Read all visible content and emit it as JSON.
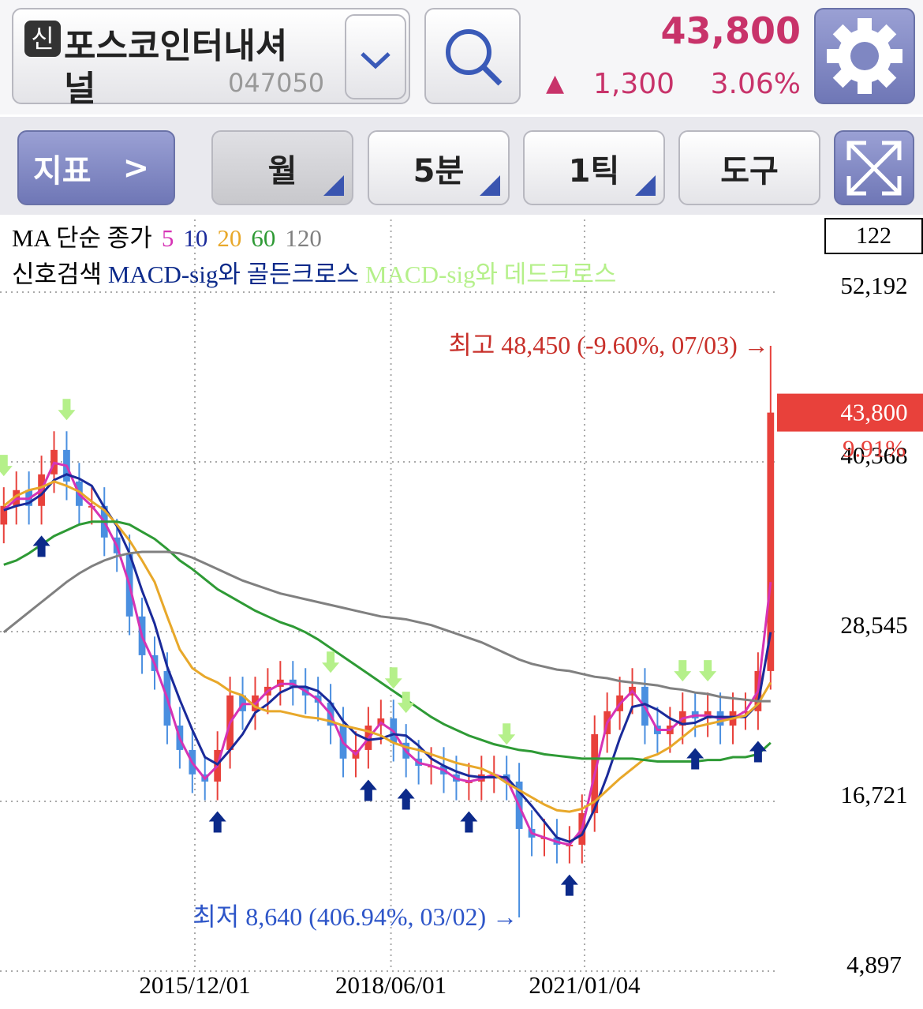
{
  "header": {
    "badge": "신",
    "stock_name_lines": [
      "포스코인터내셔",
      "널"
    ],
    "code": "047050",
    "price": "43,800",
    "change_arrow": "▲",
    "change": "1,300",
    "change_pct": "3.06%"
  },
  "toolbar": {
    "indicator": "지표",
    "period": "월",
    "minute": "5분",
    "tick": "1틱",
    "tools": "도구"
  },
  "chart_data": {
    "type": "candlestick",
    "ma_label": "MA 단순 종가",
    "signal_label": "신호검색",
    "golden_label": "MACD-sig와 골든크로스",
    "dead_label": "MACD-sig와 데드크로스",
    "visible_count": "122",
    "up_color": "#e8413b",
    "down_color": "#4a8fe0",
    "golden_color": "#0c2a8a",
    "dead_color": "#b5f08a",
    "xlim": [
      -0.3,
      61.2
    ],
    "xticks": [
      {
        "value": 15.2,
        "label": "2015/12/01"
      },
      {
        "value": 30.8,
        "label": "2018/06/01"
      },
      {
        "value": 46.2,
        "label": "2021/01/04"
      }
    ],
    "ylim": [
      4897,
      52192
    ],
    "yticks": [
      {
        "value": 4897,
        "label": "4,897"
      },
      {
        "value": 16721,
        "label": "16,721"
      },
      {
        "value": 28545,
        "label": "28,545"
      },
      {
        "value": 40368,
        "label": "40,368"
      },
      {
        "value": 52192,
        "label": "52,192"
      }
    ],
    "grid": true,
    "open": [
      36000,
      37300,
      38400,
      37300,
      39500,
      41200,
      39000,
      37300,
      37300,
      35100,
      34000,
      29600,
      26900,
      25800,
      22000,
      20300,
      18600,
      18100,
      20300,
      24100,
      23000,
      24100,
      24700,
      25200,
      24700,
      24100,
      23600,
      22000,
      19700,
      20300,
      22000,
      22500,
      20800,
      19700,
      19200,
      19200,
      18600,
      18100,
      18100,
      18600,
      18600,
      18100,
      14800,
      14200,
      14200,
      13700,
      13700,
      15900,
      21400,
      23000,
      24100,
      24700,
      22000,
      21400,
      22000,
      23000,
      22500,
      23000,
      22000,
      23000,
      23000,
      25800
    ],
    "high": [
      38600,
      39700,
      39700,
      40800,
      42500,
      42500,
      40300,
      38600,
      38600,
      36400,
      35300,
      30900,
      28200,
      27100,
      23300,
      21600,
      19900,
      21600,
      25400,
      25400,
      25400,
      26000,
      26500,
      26500,
      26000,
      25400,
      24900,
      23300,
      21600,
      23300,
      23800,
      23800,
      22100,
      21000,
      20500,
      20500,
      19900,
      19400,
      19900,
      19900,
      19900,
      19400,
      16100,
      15500,
      15500,
      15000,
      17200,
      22700,
      24300,
      25400,
      26000,
      26000,
      23300,
      23300,
      24300,
      24300,
      24300,
      24300,
      24300,
      24300,
      27100,
      48450
    ],
    "low": [
      34700,
      36000,
      36000,
      36000,
      38200,
      37700,
      36000,
      36000,
      33800,
      32700,
      28300,
      25600,
      24500,
      20700,
      19000,
      17300,
      16800,
      16800,
      19000,
      21700,
      21700,
      22800,
      23400,
      23400,
      22800,
      22300,
      20700,
      18400,
      18400,
      19000,
      20700,
      19500,
      18400,
      17900,
      17900,
      17300,
      16800,
      16800,
      16800,
      17300,
      16800,
      8640,
      12900,
      12900,
      12400,
      12400,
      12400,
      14600,
      20100,
      21700,
      22800,
      20700,
      20100,
      20100,
      20700,
      21200,
      21200,
      20700,
      20700,
      21700,
      21700,
      24500
    ],
    "close": [
      37300,
      38400,
      37300,
      39500,
      41200,
      39000,
      37300,
      37300,
      35100,
      34000,
      29600,
      26900,
      25800,
      22000,
      20300,
      18600,
      18100,
      20300,
      24100,
      23000,
      24100,
      24700,
      25200,
      24700,
      24100,
      23600,
      22000,
      19700,
      20300,
      22000,
      22500,
      20800,
      19700,
      19200,
      19200,
      18600,
      18100,
      18100,
      18600,
      18600,
      18100,
      14800,
      14200,
      14200,
      13700,
      13700,
      15900,
      21400,
      23000,
      24100,
      24700,
      22000,
      21400,
      22000,
      23000,
      22500,
      23000,
      22000,
      23000,
      23000,
      25800,
      43800
    ],
    "series": [
      {
        "name": "5",
        "color": "#d633b5",
        "values": [
          37000,
          37800,
          37800,
          38400,
          40300,
          40100,
          38100,
          37300,
          36200,
          34500,
          31800,
          28200,
          26300,
          23900,
          21100,
          19400,
          18300,
          19200,
          22200,
          23500,
          23500,
          24400,
          24900,
          24900,
          24400,
          23800,
          22800,
          20800,
          20000,
          21100,
          22200,
          21600,
          20200,
          19400,
          19200,
          18900,
          18300,
          18100,
          18300,
          18600,
          18300,
          16400,
          14500,
          14200,
          13900,
          13700,
          14800,
          18600,
          22200,
          23500,
          24400,
          23300,
          21700,
          21700,
          22500,
          22700,
          22700,
          22500,
          22500,
          23000,
          24400,
          32000
        ]
      },
      {
        "name": "10",
        "color": "#1a2a9a",
        "values": [
          37000,
          37300,
          37500,
          38100,
          39100,
          39500,
          39200,
          38700,
          37200,
          35900,
          34000,
          31400,
          29100,
          26100,
          23800,
          21700,
          19800,
          19300,
          20300,
          21400,
          22900,
          23500,
          24300,
          24700,
          24700,
          24400,
          23600,
          22300,
          21400,
          21000,
          21100,
          21400,
          21300,
          20600,
          19700,
          19200,
          18800,
          18500,
          18400,
          18400,
          18400,
          17400,
          16400,
          15300,
          14200,
          13900,
          14400,
          16200,
          18500,
          21100,
          23300,
          23500,
          23100,
          22500,
          22100,
          22200,
          22600,
          22600,
          22600,
          22600,
          23500,
          28500
        ]
      },
      {
        "name": "20",
        "color": "#e8a82a",
        "values": [
          37300,
          38000,
          38400,
          38600,
          39000,
          38700,
          38300,
          37600,
          37000,
          36000,
          34900,
          33500,
          32000,
          29600,
          27300,
          26000,
          25400,
          25000,
          24400,
          24100,
          23300,
          23000,
          23000,
          22800,
          22600,
          22500,
          22300,
          22000,
          21800,
          21600,
          21300,
          20800,
          20500,
          20300,
          20000,
          19700,
          19400,
          19200,
          19000,
          18600,
          18000,
          17500,
          17000,
          16500,
          16100,
          16000,
          16200,
          16700,
          17500,
          18300,
          19000,
          19700,
          20000,
          20500,
          21200,
          21900,
          22100,
          22300,
          22500,
          22700,
          23500,
          25000
        ]
      },
      {
        "name": "60",
        "color": "#2e9a35",
        "values": [
          33200,
          33500,
          34000,
          34600,
          35200,
          35600,
          36000,
          36200,
          36200,
          36200,
          36000,
          35500,
          35000,
          34300,
          33500,
          32900,
          32200,
          31500,
          31000,
          30500,
          30000,
          29600,
          29200,
          28900,
          28500,
          28000,
          27400,
          26800,
          26200,
          25600,
          25000,
          24400,
          23800,
          23200,
          22600,
          22100,
          21700,
          21300,
          21000,
          20700,
          20500,
          20300,
          20200,
          20000,
          19900,
          19800,
          19700,
          19700,
          19700,
          19700,
          19700,
          19600,
          19500,
          19500,
          19500,
          19500,
          19600,
          19600,
          19800,
          19800,
          20000,
          20800
        ]
      },
      {
        "name": "120",
        "color": "#808080",
        "values": [
          28500,
          29200,
          29900,
          30600,
          31300,
          32000,
          32600,
          33100,
          33500,
          33800,
          34000,
          34100,
          34100,
          34100,
          34000,
          33700,
          33300,
          32900,
          32500,
          32100,
          31800,
          31500,
          31200,
          31000,
          30800,
          30600,
          30400,
          30200,
          30000,
          29800,
          29600,
          29500,
          29400,
          29200,
          29000,
          28700,
          28400,
          28100,
          27800,
          27400,
          27000,
          26600,
          26300,
          26100,
          25900,
          25800,
          25600,
          25400,
          25300,
          25100,
          25000,
          24900,
          24800,
          24600,
          24500,
          24300,
          24200,
          24000,
          23900,
          23800,
          23700,
          23700
        ]
      }
    ],
    "golden_cross_at": [
      3,
      17,
      29,
      32,
      37,
      45,
      55,
      60
    ],
    "dead_cross_at": [
      0,
      5,
      26,
      31,
      32,
      40,
      54,
      56
    ],
    "annotations": [
      {
        "text": "최고 48,450 (-9.60%, 07/03) →",
        "index": 61,
        "value": 48450,
        "color": "#c8302a"
      },
      {
        "text": "최저 8,640 (406.94%, 03/02) →",
        "index": 41,
        "value": 8640,
        "color": "#2d55c8"
      }
    ],
    "last_price": {
      "value": 43800,
      "label": "43,800"
    },
    "last_change_label": "9.91%"
  }
}
